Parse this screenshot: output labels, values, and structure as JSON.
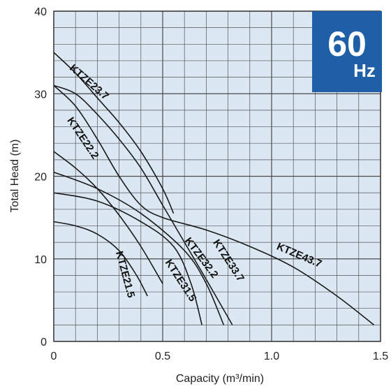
{
  "chart_data": {
    "type": "line",
    "xlabel": "Capacity (m³/min)",
    "ylabel": "Total Head (m)",
    "xlim": [
      0,
      1.5
    ],
    "ylim": [
      0,
      40
    ],
    "x_ticks": [
      0,
      0.5,
      1.0,
      1.5
    ],
    "x_tick_labels": [
      "0",
      "0.5",
      "1.0",
      "1.5"
    ],
    "y_ticks": [
      0,
      10,
      20,
      30,
      40
    ],
    "y_tick_labels": [
      "0",
      "10",
      "20",
      "30",
      "40"
    ],
    "grid": true,
    "grid_minor_x_step": 0.1,
    "grid_minor_y_step": 2,
    "background_color": "#dbe7f2",
    "badge": {
      "value": "60",
      "unit": "Hz",
      "color": "#1f5fa8",
      "position": "top-right"
    },
    "series": [
      {
        "name": "KTZE21.5",
        "points": [
          [
            0,
            14.5
          ],
          [
            0.1,
            14
          ],
          [
            0.2,
            13
          ],
          [
            0.3,
            11
          ],
          [
            0.38,
            8
          ],
          [
            0.43,
            5.5
          ]
        ]
      },
      {
        "name": "KTZE22.2",
        "points": [
          [
            0,
            23
          ],
          [
            0.1,
            21
          ],
          [
            0.2,
            18.5
          ],
          [
            0.3,
            15.3
          ],
          [
            0.4,
            11.5
          ],
          [
            0.5,
            7
          ]
        ]
      },
      {
        "name": "KTZE23.7",
        "points": [
          [
            0,
            35
          ],
          [
            0.1,
            32.5
          ],
          [
            0.2,
            29.5
          ],
          [
            0.3,
            26.5
          ],
          [
            0.4,
            23
          ],
          [
            0.5,
            18.5
          ],
          [
            0.55,
            15.5
          ]
        ]
      },
      {
        "name": "KTZE31.5",
        "points": [
          [
            0,
            18
          ],
          [
            0.2,
            17
          ],
          [
            0.4,
            14.5
          ],
          [
            0.55,
            11.5
          ],
          [
            0.63,
            7
          ],
          [
            0.68,
            2
          ]
        ]
      },
      {
        "name": "KTZE32.2",
        "points": [
          [
            0,
            20.5
          ],
          [
            0.2,
            18.5
          ],
          [
            0.4,
            15.5
          ],
          [
            0.6,
            11
          ],
          [
            0.7,
            7
          ],
          [
            0.78,
            2
          ]
        ]
      },
      {
        "name": "KTZE33.7",
        "points": [
          [
            0,
            31
          ],
          [
            0.1,
            30
          ],
          [
            0.2,
            27.5
          ],
          [
            0.3,
            24.5
          ],
          [
            0.4,
            21
          ],
          [
            0.5,
            16.5
          ],
          [
            0.6,
            12
          ],
          [
            0.7,
            7.5
          ],
          [
            0.82,
            2
          ]
        ]
      },
      {
        "name": "KTZE43.7",
        "points": [
          [
            0,
            31
          ],
          [
            0.1,
            28.5
          ],
          [
            0.2,
            24.5
          ],
          [
            0.3,
            20
          ],
          [
            0.4,
            16.5
          ],
          [
            0.5,
            15
          ],
          [
            0.7,
            13.5
          ],
          [
            0.9,
            11.5
          ],
          [
            1.1,
            9
          ],
          [
            1.3,
            5.5
          ],
          [
            1.47,
            2
          ]
        ]
      }
    ]
  }
}
